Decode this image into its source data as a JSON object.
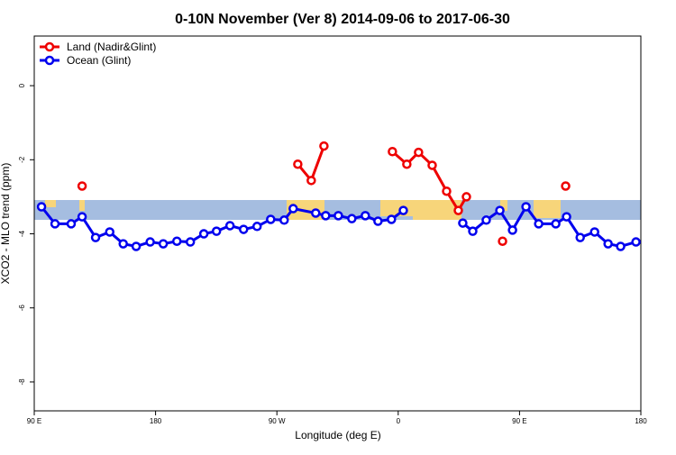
{
  "chart_data": {
    "type": "line",
    "title": "0-10N November (Ver 8)   2014-09-06 to 2017-06-30",
    "x_label": "Longitude (deg E)",
    "y_label": "XCO2 - MLO trend (ppm)",
    "xlim": [
      90,
      540
    ],
    "xticks": [
      {
        "value": 90,
        "label": "90 E"
      },
      {
        "value": 180,
        "label": "180"
      },
      {
        "value": 270,
        "label": "90 W"
      },
      {
        "value": 360,
        "label": "0"
      },
      {
        "value": 450,
        "label": "90 E"
      },
      {
        "value": 540,
        "label": "180"
      }
    ],
    "ylim": [
      -8.78,
      1.34
    ],
    "yticks": [
      -8,
      -6,
      -4,
      -2,
      0
    ],
    "legend": "topleft",
    "series": [
      {
        "name": "Land (Nadir&Glint)",
        "color": "#ee0000",
        "x": [
          125.5,
          null,
          285.5,
          295.5,
          304.9,
          null,
          355.7,
          366.4,
          375.1,
          385.2,
          395.9,
          404.6,
          410.6,
          null,
          437.4,
          null,
          484.2
        ],
        "values": [
          -2.71,
          null,
          -2.12,
          -2.56,
          -1.63,
          null,
          -1.78,
          -2.12,
          -1.8,
          -2.15,
          -2.85,
          -3.37,
          -3.0,
          null,
          -4.2,
          null,
          -2.71
        ]
      },
      {
        "name": "Ocean (Glint)",
        "color": "#0000ee",
        "x": [
          95.4,
          105.4,
          117.4,
          125.5,
          135.5,
          146,
          156,
          165.6,
          176,
          185.7,
          195.8,
          205.8,
          215.8,
          225.2,
          235.2,
          245.3,
          255.3,
          265.4,
          275.4,
          282.1,
          298.8,
          306.2,
          315.6,
          325.6,
          335.6,
          345,
          355,
          363.8,
          null,
          407.9,
          415.3,
          425.3,
          435.4,
          444.8,
          454.8,
          464.2,
          476.9,
          484.9,
          495,
          505.7,
          515.7,
          525,
          536.4
        ],
        "values": [
          -3.27,
          -3.73,
          -3.73,
          -3.54,
          -4.1,
          -3.95,
          -4.27,
          -4.34,
          -4.22,
          -4.27,
          -4.2,
          -4.22,
          -4.0,
          -3.93,
          -3.78,
          -3.88,
          -3.8,
          -3.61,
          -3.63,
          -3.32,
          -3.44,
          -3.51,
          -3.51,
          -3.59,
          -3.51,
          -3.66,
          -3.61,
          -3.37,
          null,
          -3.71,
          -3.93,
          -3.63,
          -3.37,
          -3.9,
          -3.27,
          -3.73,
          -3.73,
          -3.54,
          -4.1,
          -3.95,
          -4.27,
          -4.34,
          -4.22
        ]
      }
    ]
  }
}
